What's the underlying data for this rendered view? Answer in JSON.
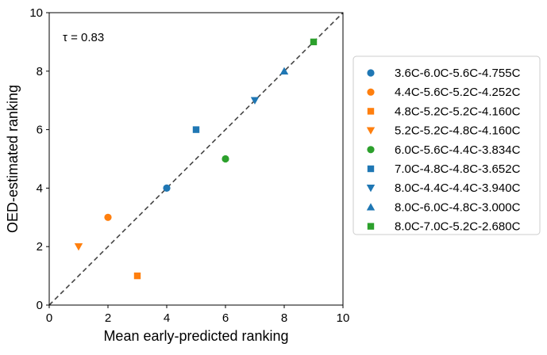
{
  "chart_data": {
    "type": "scatter",
    "title": "",
    "xlabel": "Mean early-predicted ranking",
    "ylabel": "OED-estimated ranking",
    "xlim": [
      0,
      10
    ],
    "ylim": [
      0,
      10
    ],
    "xticks": [
      0,
      2,
      4,
      6,
      8,
      10
    ],
    "yticks": [
      0,
      2,
      4,
      6,
      8,
      10
    ],
    "grid": false,
    "legend_position": "right-outside",
    "annotation": "τ = 0.83",
    "reference_line": {
      "style": "dashed",
      "color": "#444444",
      "from": [
        0,
        0
      ],
      "to": [
        10,
        10
      ]
    },
    "series": [
      {
        "name": "3.6C-6.0C-5.6C-4.755C",
        "marker": "circle",
        "color": "#1f77b4",
        "points": [
          [
            4,
            4
          ]
        ]
      },
      {
        "name": "4.4C-5.6C-5.2C-4.252C",
        "marker": "circle",
        "color": "#ff7f0e",
        "points": [
          [
            2,
            3
          ]
        ]
      },
      {
        "name": "4.8C-5.2C-5.2C-4.160C",
        "marker": "square",
        "color": "#ff7f0e",
        "points": [
          [
            3,
            1
          ]
        ]
      },
      {
        "name": "5.2C-5.2C-4.8C-4.160C",
        "marker": "triangle-down",
        "color": "#ff7f0e",
        "points": [
          [
            1,
            2
          ]
        ]
      },
      {
        "name": "6.0C-5.6C-4.4C-3.834C",
        "marker": "circle",
        "color": "#2ca02c",
        "points": [
          [
            6,
            5
          ]
        ]
      },
      {
        "name": "7.0C-4.8C-4.8C-3.652C",
        "marker": "square",
        "color": "#1f77b4",
        "points": [
          [
            5,
            6
          ]
        ]
      },
      {
        "name": "8.0C-4.4C-4.4C-3.940C",
        "marker": "triangle-down",
        "color": "#1f77b4",
        "points": [
          [
            7,
            7
          ]
        ]
      },
      {
        "name": "8.0C-6.0C-4.8C-3.000C",
        "marker": "triangle-up",
        "color": "#1f77b4",
        "points": [
          [
            8,
            8
          ]
        ]
      },
      {
        "name": "8.0C-7.0C-5.2C-2.680C",
        "marker": "square",
        "color": "#2ca02c",
        "points": [
          [
            9,
            9
          ]
        ]
      }
    ]
  }
}
